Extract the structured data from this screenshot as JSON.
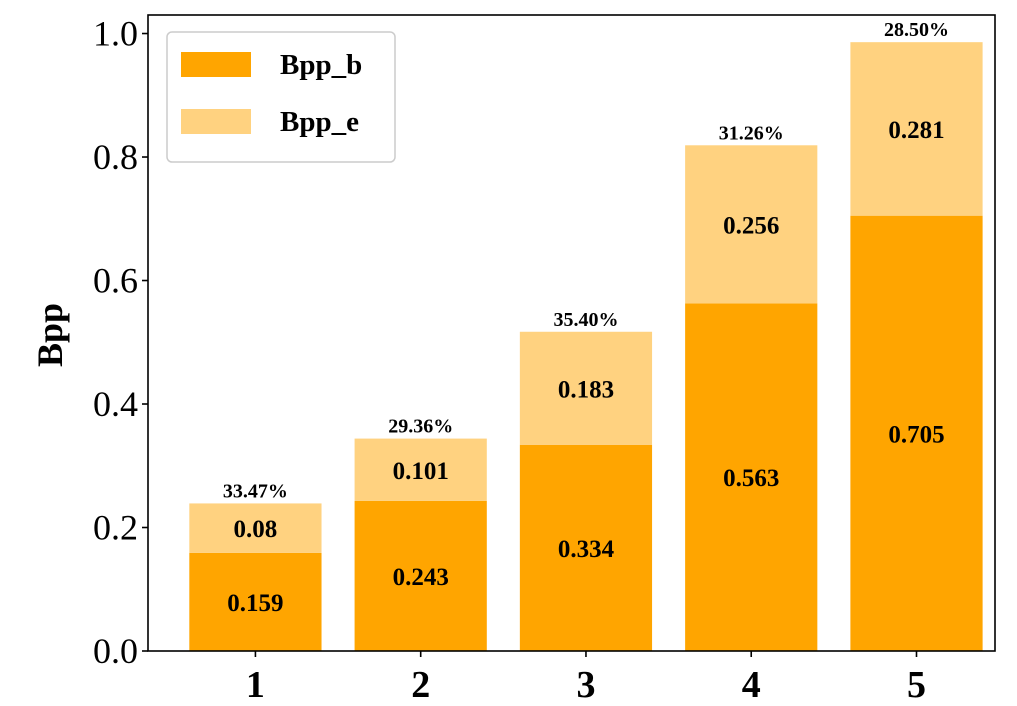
{
  "chart_data": {
    "type": "bar",
    "stacked": true,
    "categories": [
      "1",
      "2",
      "3",
      "4",
      "5"
    ],
    "series": [
      {
        "name": "Bpp_b",
        "color": "#FFA500",
        "values": [
          0.159,
          0.243,
          0.334,
          0.563,
          0.705
        ],
        "labels": [
          "0.159",
          "0.243",
          "0.334",
          "0.563",
          "0.705"
        ]
      },
      {
        "name": "Bpp_e",
        "color": "#FFD280",
        "values": [
          0.08,
          0.101,
          0.183,
          0.256,
          0.281
        ],
        "labels": [
          "0.08",
          "0.101",
          "0.183",
          "0.256",
          "0.281"
        ]
      }
    ],
    "top_labels": [
      "33.47%",
      "29.36%",
      "35.40%",
      "31.26%",
      "28.50%"
    ],
    "ylabel": "Bpp",
    "xlabel": "",
    "ylim": [
      0,
      1.03
    ],
    "yticks": [
      0.0,
      0.2,
      0.4,
      0.6,
      0.8,
      1.0
    ],
    "ytick_labels": [
      "0.0",
      "0.2",
      "0.4",
      "0.6",
      "0.8",
      "1.0"
    ],
    "grid": false,
    "legend_position": "top-left"
  }
}
